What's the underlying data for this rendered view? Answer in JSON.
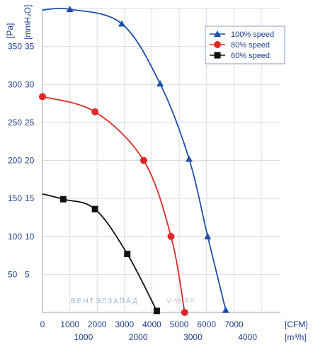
{
  "chart_data": {
    "type": "line",
    "y_unit_primary": "[Pa]",
    "y_unit_secondary": "[mmH₂O]",
    "x_unit_primary": "[CFM]",
    "x_unit_secondary": "[m³/h]",
    "xlim": [
      0,
      4350
    ],
    "ylim": [
      0,
      400
    ],
    "grid": true,
    "legend_position": "top-right",
    "x_ticks_primary": [
      "0",
      "1000",
      "2000",
      "3000",
      "4000",
      "5000",
      "6000",
      "7000"
    ],
    "x_ticks_secondary": [
      "1000",
      "2000",
      "3000",
      "4000"
    ],
    "y_ticks_primary": [
      "50",
      "100",
      "150",
      "200",
      "250",
      "300",
      "350"
    ],
    "y_ticks_secondary": [
      "5",
      "10",
      "15",
      "20",
      "25",
      "30",
      "35"
    ],
    "series": [
      {
        "name": "100%  speed",
        "color": "#1f4fa8",
        "marker": "triangle",
        "points": [
          {
            "x": 0,
            "y": 398
          },
          {
            "x": 500,
            "y": 399
          },
          {
            "x": 1450,
            "y": 380
          },
          {
            "x": 2150,
            "y": 301
          },
          {
            "x": 2680,
            "y": 202
          },
          {
            "x": 3020,
            "y": 100
          },
          {
            "x": 3350,
            "y": 3
          }
        ],
        "markers": [
          {
            "x": 500,
            "y": 399
          },
          {
            "x": 1450,
            "y": 380
          },
          {
            "x": 2150,
            "y": 301
          },
          {
            "x": 2680,
            "y": 202
          },
          {
            "x": 3020,
            "y": 100
          },
          {
            "x": 3350,
            "y": 3
          }
        ]
      },
      {
        "name": "80%  speed",
        "color": "#e02828",
        "marker": "circle",
        "points": [
          {
            "x": 0,
            "y": 284
          },
          {
            "x": 960,
            "y": 264
          },
          {
            "x": 1850,
            "y": 200
          },
          {
            "x": 2350,
            "y": 100
          },
          {
            "x": 2600,
            "y": 0
          }
        ],
        "markers": [
          {
            "x": 0,
            "y": 284
          },
          {
            "x": 960,
            "y": 264
          },
          {
            "x": 1850,
            "y": 200
          },
          {
            "x": 2350,
            "y": 100
          },
          {
            "x": 2600,
            "y": 0
          }
        ]
      },
      {
        "name": "60%  speed",
        "color": "#111111",
        "marker": "square",
        "points": [
          {
            "x": 0,
            "y": 156
          },
          {
            "x": 380,
            "y": 149
          },
          {
            "x": 960,
            "y": 136
          },
          {
            "x": 1550,
            "y": 77
          },
          {
            "x": 2090,
            "y": 2
          }
        ],
        "markers": [
          {
            "x": 380,
            "y": 149
          },
          {
            "x": 960,
            "y": 136
          },
          {
            "x": 1550,
            "y": 77
          },
          {
            "x": 2090,
            "y": 2
          }
        ]
      }
    ]
  },
  "watermark": {
    "left": "ВЕНТЭЛЗАПАД",
    "right": "V-W.BY"
  }
}
